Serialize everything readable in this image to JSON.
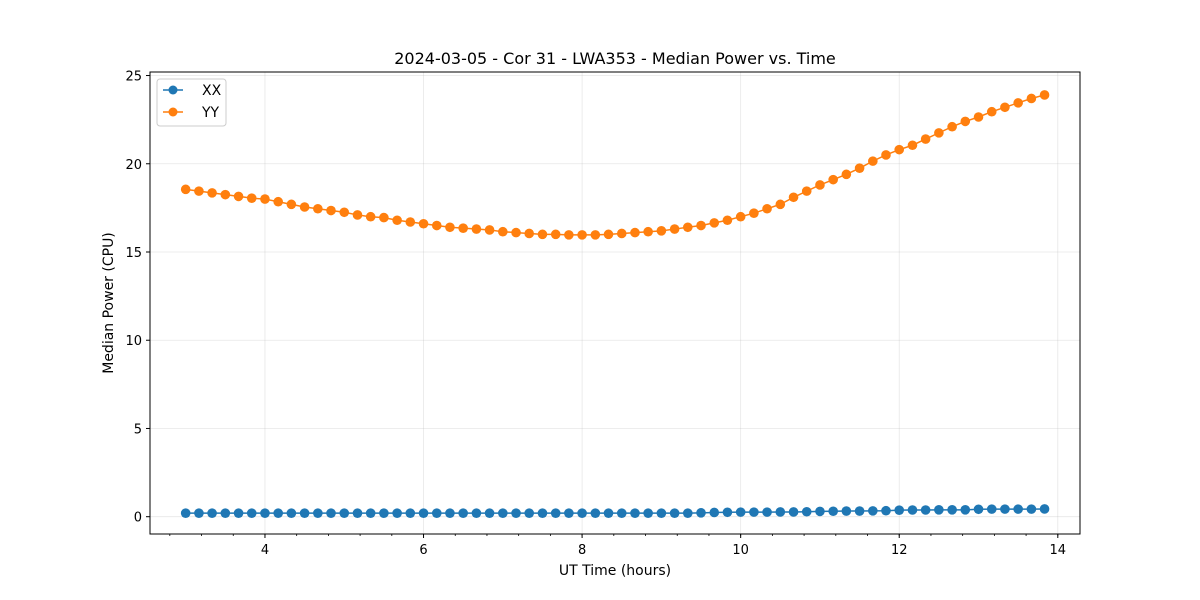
{
  "chart_data": {
    "type": "line",
    "title": "2024-03-05 - Cor 31 - LWA353 - Median Power vs. Time",
    "xlabel": "UT Time (hours)",
    "ylabel": "Median Power (CPU)",
    "xlim": [
      2.55,
      14.28
    ],
    "ylim": [
      -0.98,
      25.2
    ],
    "xticks": [
      4,
      6,
      8,
      10,
      12,
      14
    ],
    "xtick_labels": [
      "4",
      "6",
      "8",
      "10",
      "12",
      "14"
    ],
    "xminor_step": 0.4,
    "yticks": [
      0,
      5,
      10,
      15,
      20,
      25
    ],
    "ytick_labels": [
      "0",
      "5",
      "10",
      "15",
      "20",
      "25"
    ],
    "grid": true,
    "legend_position": "top-left",
    "x": [
      3.0,
      3.167,
      3.333,
      3.5,
      3.667,
      3.833,
      4.0,
      4.167,
      4.333,
      4.5,
      4.667,
      4.833,
      5.0,
      5.167,
      5.333,
      5.5,
      5.667,
      5.833,
      6.0,
      6.167,
      6.333,
      6.5,
      6.667,
      6.833,
      7.0,
      7.167,
      7.333,
      7.5,
      7.667,
      7.833,
      8.0,
      8.167,
      8.333,
      8.5,
      8.667,
      8.833,
      9.0,
      9.167,
      9.333,
      9.5,
      9.667,
      9.833,
      10.0,
      10.167,
      10.333,
      10.5,
      10.667,
      10.833,
      11.0,
      11.167,
      11.333,
      11.5,
      11.667,
      11.833,
      12.0,
      12.167,
      12.333,
      12.5,
      12.667,
      12.833,
      13.0,
      13.167,
      13.333,
      13.5,
      13.667,
      13.833
    ],
    "series": [
      {
        "name": "XX",
        "color": "#1f77b4",
        "values": [
          0.2,
          0.2,
          0.2,
          0.2,
          0.2,
          0.2,
          0.2,
          0.2,
          0.2,
          0.2,
          0.2,
          0.2,
          0.2,
          0.2,
          0.2,
          0.2,
          0.2,
          0.2,
          0.2,
          0.2,
          0.2,
          0.2,
          0.2,
          0.2,
          0.2,
          0.2,
          0.2,
          0.2,
          0.2,
          0.2,
          0.2,
          0.2,
          0.2,
          0.2,
          0.2,
          0.2,
          0.2,
          0.2,
          0.2,
          0.22,
          0.24,
          0.25,
          0.26,
          0.26,
          0.26,
          0.27,
          0.27,
          0.28,
          0.3,
          0.31,
          0.32,
          0.32,
          0.33,
          0.34,
          0.37,
          0.38,
          0.38,
          0.39,
          0.39,
          0.39,
          0.42,
          0.43,
          0.43,
          0.43,
          0.43,
          0.44
        ]
      },
      {
        "name": "YY",
        "color": "#ff7f0e",
        "values": [
          18.55,
          18.45,
          18.35,
          18.25,
          18.15,
          18.05,
          18.0,
          17.85,
          17.7,
          17.55,
          17.45,
          17.35,
          17.25,
          17.1,
          17.0,
          16.95,
          16.8,
          16.7,
          16.6,
          16.5,
          16.4,
          16.35,
          16.3,
          16.25,
          16.15,
          16.1,
          16.05,
          16.0,
          16.0,
          15.97,
          15.97,
          15.97,
          16.0,
          16.05,
          16.1,
          16.15,
          16.2,
          16.3,
          16.4,
          16.5,
          16.65,
          16.8,
          17.0,
          17.2,
          17.45,
          17.7,
          18.1,
          18.45,
          18.8,
          19.1,
          19.4,
          19.75,
          20.15,
          20.5,
          20.8,
          21.05,
          21.4,
          21.75,
          22.1,
          22.4,
          22.65,
          22.95,
          23.2,
          23.45,
          23.7,
          23.9
        ]
      }
    ]
  }
}
